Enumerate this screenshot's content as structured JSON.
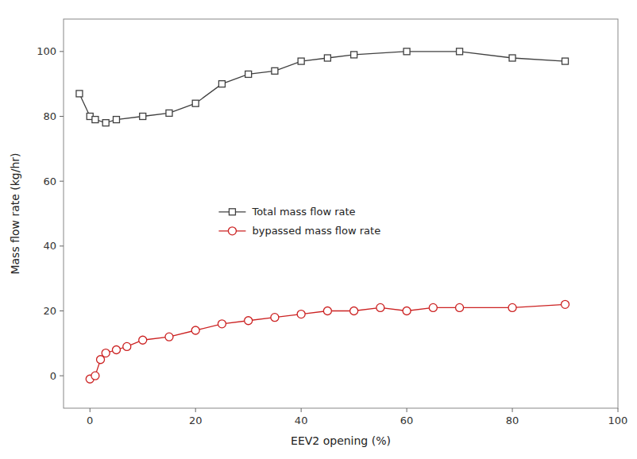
{
  "chart_data": {
    "type": "line",
    "xlabel": "EEV2 opening (%)",
    "ylabel": "Mass flow rate (kg/hr)",
    "xlim": [
      -5,
      100
    ],
    "ylim": [
      -10,
      110
    ],
    "xticks": [
      0,
      20,
      40,
      60,
      80,
      100
    ],
    "yticks": [
      0,
      20,
      40,
      60,
      80,
      100
    ],
    "grid": false,
    "legend": "center",
    "series": [
      {
        "name": "Total mass flow rate",
        "color": "#404040",
        "marker": "square",
        "x": [
          -2,
          0,
          1,
          3,
          5,
          10,
          15,
          20,
          25,
          30,
          35,
          40,
          45,
          50,
          60,
          70,
          80,
          90
        ],
        "values": [
          87,
          80,
          79,
          78,
          79,
          80,
          81,
          84,
          90,
          93,
          94,
          97,
          98,
          99,
          100,
          100,
          98,
          97
        ]
      },
      {
        "name": "bypassed mass flow rate",
        "color": "#cc2222",
        "marker": "circle",
        "x": [
          0,
          1,
          2,
          3,
          5,
          7,
          10,
          15,
          20,
          25,
          30,
          35,
          40,
          45,
          50,
          55,
          60,
          65,
          70,
          80,
          90
        ],
        "values": [
          -1,
          0,
          5,
          7,
          8,
          9,
          11,
          12,
          14,
          16,
          17,
          18,
          19,
          20,
          20,
          21,
          20,
          21,
          21,
          21,
          22
        ]
      }
    ]
  }
}
